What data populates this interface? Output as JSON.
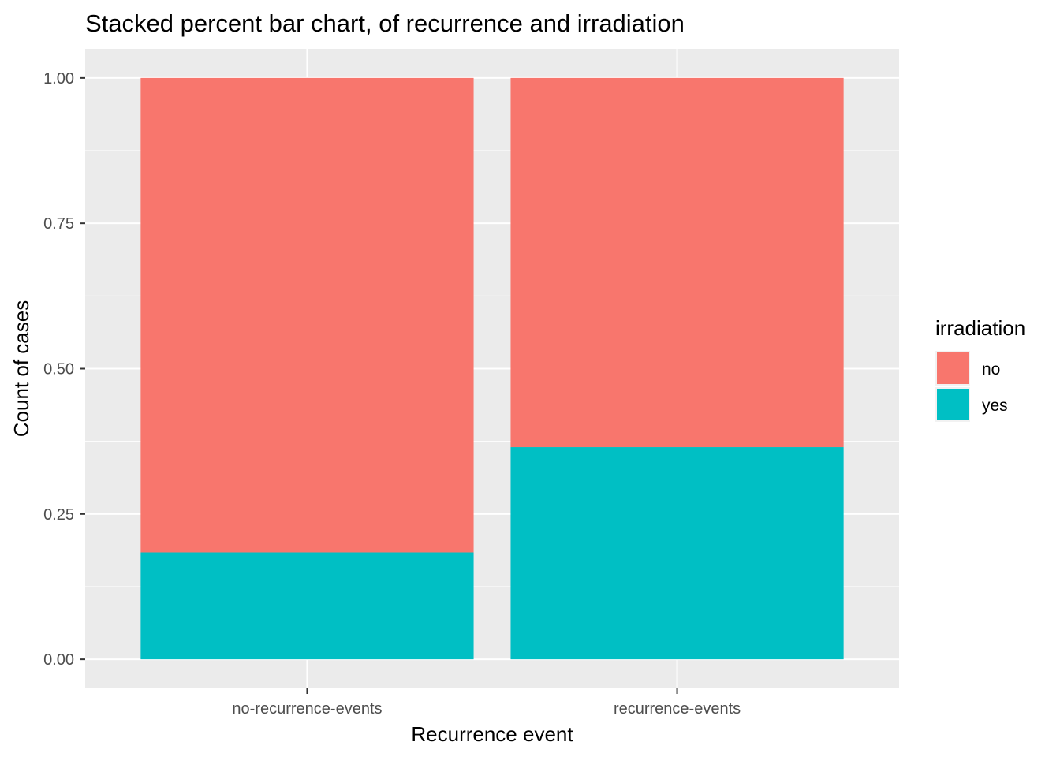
{
  "chart_data": {
    "type": "bar",
    "stacked": true,
    "title": "Stacked percent bar chart, of recurrence and irradiation",
    "xlabel": "Recurrence event",
    "ylabel": "Count of cases",
    "categories": [
      "no-recurrence-events",
      "recurrence-events"
    ],
    "series": [
      {
        "name": "yes",
        "values": [
          0.184,
          0.365
        ],
        "color": "#00BFC4"
      },
      {
        "name": "no",
        "values": [
          0.816,
          0.635
        ],
        "color": "#F8766D"
      }
    ],
    "ylim": [
      -0.05,
      1.05
    ],
    "yticks": [
      0,
      0.25,
      0.5,
      0.75,
      1
    ],
    "ytick_labels": [
      "0.00",
      "0.25",
      "0.50",
      "0.75",
      "1.00"
    ],
    "grid": true,
    "panel_background": "#EBEBEB",
    "legend": {
      "title": "irradiation",
      "position": "right",
      "items": [
        {
          "label": "no",
          "color": "#F8766D"
        },
        {
          "label": "yes",
          "color": "#00BFC4"
        }
      ]
    }
  }
}
